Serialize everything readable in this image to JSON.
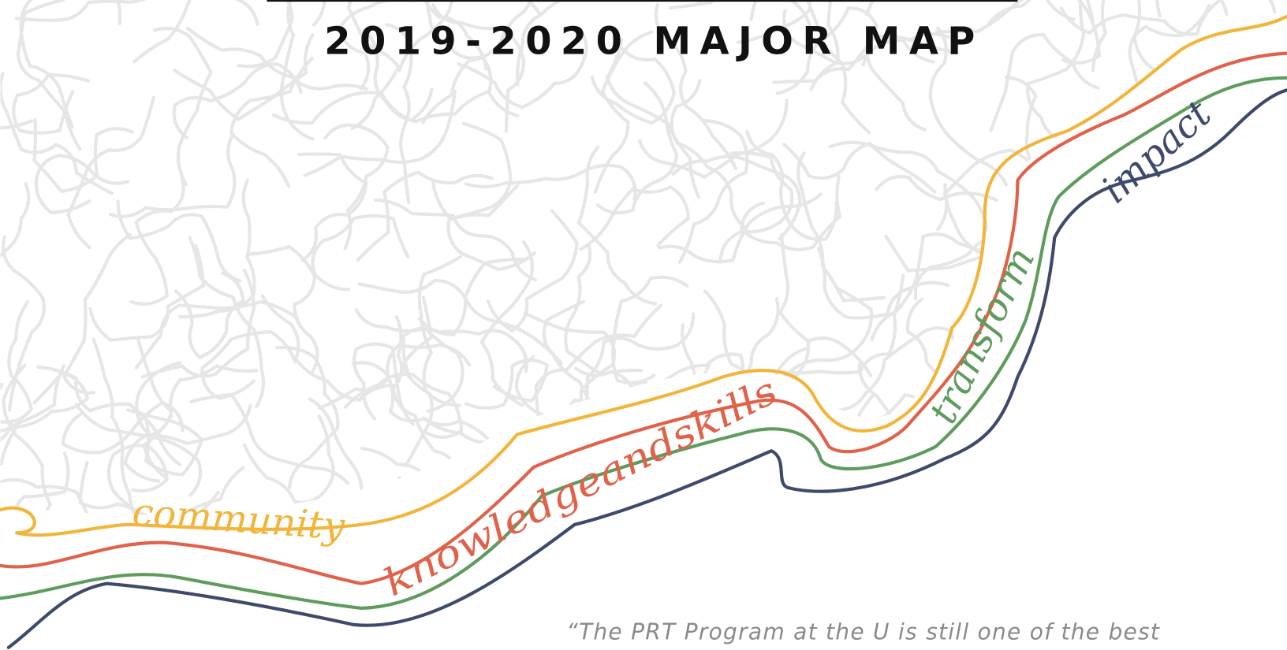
{
  "header": {
    "title": "2019-2020 MAJOR MAP"
  },
  "words": [
    "community",
    "knowledgeandskills",
    "transform",
    "impact"
  ],
  "quote": "“The PRT Program at the U is still one of the best"
}
